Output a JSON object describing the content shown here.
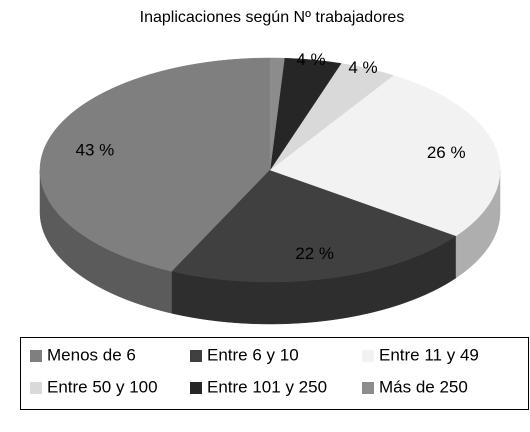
{
  "chart_data": {
    "type": "pie3d",
    "title": "Inaplicaciones según Nº trabajadores",
    "categories": [
      "Menos de 6",
      "Entre 6 y 10",
      "Entre 11 y 49",
      "Entre 50 y 100",
      "Entre 101 y 250",
      "Más de 250"
    ],
    "values": [
      43,
      22,
      26,
      4,
      4,
      1
    ],
    "value_labels": [
      "43 %",
      "22 %",
      "26 %",
      "4 %",
      "4 %",
      null
    ],
    "colors": [
      "#7f7f7f",
      "#404040",
      "#f2f2f2",
      "#d9d9d9",
      "#262626",
      "#8c8c8c"
    ],
    "legend": "bottom"
  }
}
